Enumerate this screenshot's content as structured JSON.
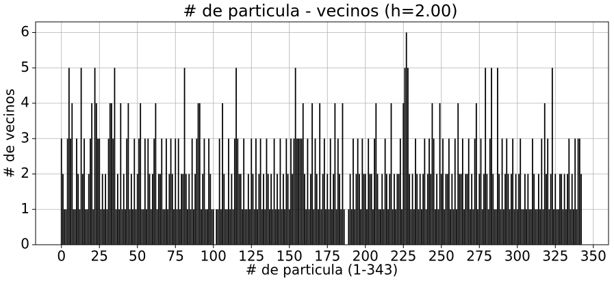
{
  "chart_data": {
    "type": "bar",
    "title": "# de particula - vecinos (h=2.00)",
    "xlabel": "# de particula (1-343)",
    "ylabel": "# de vecinos",
    "color": "#000000",
    "grid": true,
    "xlim": [
      -17,
      360
    ],
    "ylim": [
      0,
      6.3
    ],
    "xticks": [
      0,
      25,
      50,
      75,
      100,
      125,
      150,
      175,
      200,
      225,
      250,
      275,
      300,
      325,
      350
    ],
    "yticks": [
      0,
      1,
      2,
      3,
      4,
      5,
      6
    ],
    "x": [
      0,
      1,
      2,
      3,
      4,
      5,
      6,
      7,
      8,
      9,
      10,
      11,
      12,
      13,
      14,
      15,
      16,
      17,
      18,
      19,
      20,
      21,
      22,
      23,
      24,
      25,
      26,
      27,
      28,
      29,
      30,
      31,
      32,
      33,
      34,
      35,
      36,
      37,
      38,
      39,
      40,
      41,
      42,
      43,
      44,
      45,
      46,
      47,
      48,
      49,
      50,
      51,
      52,
      53,
      54,
      55,
      56,
      57,
      58,
      59,
      60,
      61,
      62,
      63,
      64,
      65,
      66,
      67,
      68,
      69,
      70,
      71,
      72,
      73,
      74,
      75,
      76,
      77,
      78,
      79,
      80,
      81,
      82,
      83,
      84,
      85,
      86,
      87,
      88,
      89,
      90,
      91,
      92,
      93,
      94,
      95,
      96,
      97,
      98,
      99,
      100,
      101,
      102,
      103,
      104,
      105,
      106,
      107,
      108,
      109,
      110,
      111,
      112,
      113,
      114,
      115,
      116,
      117,
      118,
      119,
      120,
      121,
      122,
      123,
      124,
      125,
      126,
      127,
      128,
      129,
      130,
      131,
      132,
      133,
      134,
      135,
      136,
      137,
      138,
      139,
      140,
      141,
      142,
      143,
      144,
      145,
      146,
      147,
      148,
      149,
      150,
      151,
      152,
      153,
      154,
      155,
      156,
      157,
      158,
      159,
      160,
      161,
      162,
      163,
      164,
      165,
      166,
      167,
      168,
      169,
      170,
      171,
      172,
      173,
      174,
      175,
      176,
      177,
      178,
      179,
      180,
      181,
      182,
      183,
      184,
      185,
      186,
      187,
      188,
      189,
      190,
      191,
      192,
      193,
      194,
      195,
      196,
      197,
      198,
      199,
      200,
      201,
      202,
      203,
      204,
      205,
      206,
      207,
      208,
      209,
      210,
      211,
      212,
      213,
      214,
      215,
      216,
      217,
      218,
      219,
      220,
      221,
      222,
      223,
      224,
      225,
      226,
      227,
      228,
      229,
      230,
      231,
      232,
      233,
      234,
      235,
      236,
      237,
      238,
      239,
      240,
      241,
      242,
      243,
      244,
      245,
      246,
      247,
      248,
      249,
      250,
      251,
      252,
      253,
      254,
      255,
      256,
      257,
      258,
      259,
      260,
      261,
      262,
      263,
      264,
      265,
      266,
      267,
      268,
      269,
      270,
      271,
      272,
      273,
      274,
      275,
      276,
      277,
      278,
      279,
      280,
      281,
      282,
      283,
      284,
      285,
      286,
      287,
      288,
      289,
      290,
      291,
      292,
      293,
      294,
      295,
      296,
      297,
      298,
      299,
      300,
      301,
      302,
      303,
      304,
      305,
      306,
      307,
      308,
      309,
      310,
      311,
      312,
      313,
      314,
      315,
      316,
      317,
      318,
      319,
      320,
      321,
      322,
      323,
      324,
      325,
      326,
      327,
      328,
      329,
      330,
      331,
      332,
      333,
      334,
      335,
      336,
      337,
      338,
      339,
      340,
      341,
      342
    ],
    "values": [
      3,
      2,
      1,
      1,
      3,
      5,
      3,
      4,
      1,
      1,
      3,
      2,
      1,
      5,
      2,
      3,
      1,
      1,
      2,
      3,
      4,
      1,
      5,
      4,
      3,
      3,
      1,
      2,
      1,
      2,
      1,
      3,
      4,
      4,
      3,
      5,
      1,
      2,
      1,
      4,
      1,
      2,
      1,
      3,
      4,
      1,
      2,
      1,
      3,
      1,
      2,
      3,
      4,
      1,
      1,
      3,
      1,
      3,
      2,
      1,
      2,
      3,
      4,
      1,
      2,
      2,
      3,
      1,
      1,
      3,
      1,
      2,
      3,
      2,
      1,
      3,
      1,
      3,
      1,
      2,
      2,
      5,
      2,
      1,
      2,
      1,
      3,
      1,
      2,
      3,
      4,
      4,
      1,
      2,
      3,
      1,
      1,
      3,
      2,
      1,
      1,
      0,
      1,
      1,
      3,
      1,
      4,
      2,
      1,
      1,
      3,
      1,
      2,
      1,
      3,
      5,
      3,
      2,
      2,
      1,
      3,
      1,
      1,
      2,
      1,
      3,
      2,
      1,
      3,
      1,
      2,
      3,
      1,
      2,
      1,
      3,
      2,
      1,
      2,
      1,
      3,
      1,
      2,
      1,
      3,
      1,
      2,
      1,
      3,
      2,
      1,
      3,
      2,
      3,
      5,
      3,
      3,
      3,
      3,
      4,
      2,
      1,
      3,
      1,
      2,
      4,
      1,
      3,
      2,
      1,
      4,
      1,
      2,
      3,
      1,
      2,
      1,
      3,
      1,
      2,
      4,
      1,
      3,
      2,
      1,
      4,
      1,
      0,
      0,
      1,
      2,
      1,
      3,
      1,
      2,
      3,
      2,
      1,
      3,
      2,
      2,
      1,
      3,
      2,
      2,
      1,
      3,
      4,
      2,
      1,
      1,
      2,
      1,
      3,
      2,
      1,
      2,
      4,
      1,
      2,
      1,
      2,
      2,
      3,
      1,
      4,
      5,
      6,
      5,
      2,
      1,
      2,
      1,
      3,
      2,
      1,
      2,
      1,
      2,
      3,
      1,
      2,
      3,
      2,
      4,
      3,
      1,
      2,
      1,
      4,
      2,
      3,
      1,
      2,
      2,
      3,
      1,
      2,
      1,
      3,
      1,
      4,
      2,
      2,
      3,
      1,
      2,
      2,
      3,
      1,
      2,
      1,
      3,
      4,
      1,
      2,
      3,
      1,
      2,
      5,
      2,
      1,
      3,
      5,
      2,
      1,
      1,
      5,
      2,
      1,
      3,
      1,
      2,
      3,
      2,
      1,
      2,
      3,
      1,
      2,
      1,
      2,
      3,
      1,
      1,
      2,
      1,
      2,
      1,
      1,
      3,
      2,
      1,
      1,
      2,
      1,
      3,
      1,
      4,
      2,
      3,
      1,
      2,
      5,
      1,
      2,
      1,
      1,
      2,
      2,
      1,
      2,
      1,
      2,
      3,
      1,
      2,
      1,
      3,
      1,
      3,
      3,
      2
    ]
  }
}
